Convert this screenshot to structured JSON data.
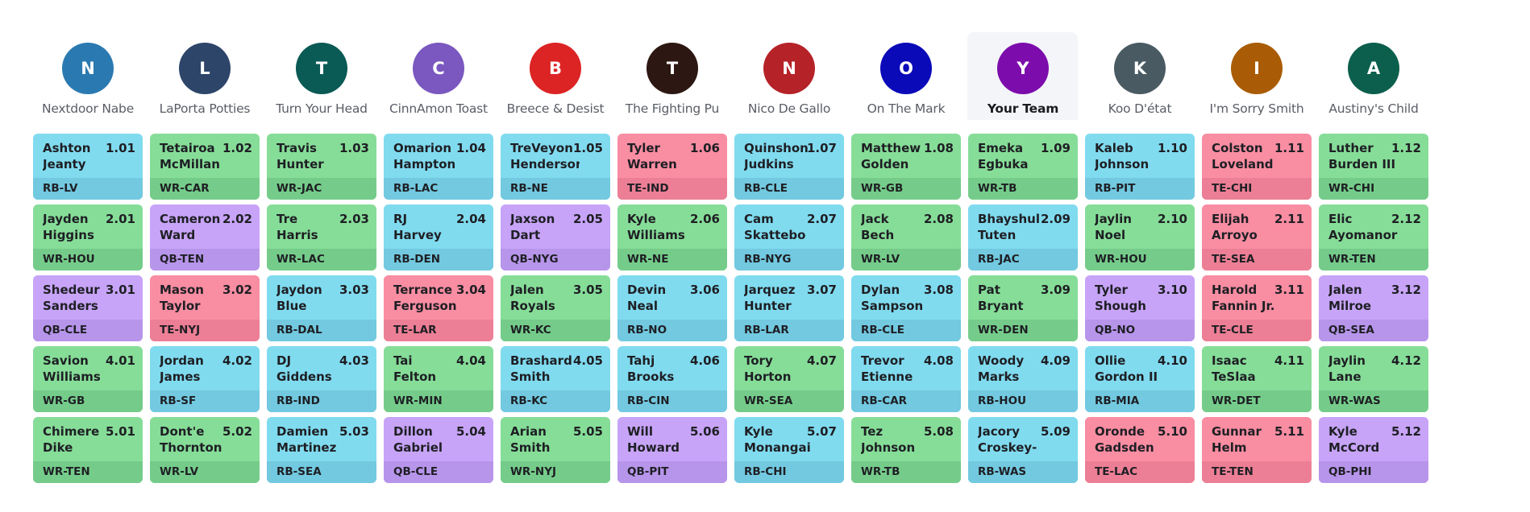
{
  "my_team": "Your Team",
  "teams": [
    {
      "initial": "N",
      "name": "Nextdoor Nabe",
      "color": "#2a7ab1"
    },
    {
      "initial": "L",
      "name": "LaPorta Potties",
      "color": "#2d4569"
    },
    {
      "initial": "T",
      "name": "Turn Your Head",
      "color": "#0a5a55"
    },
    {
      "initial": "C",
      "name": "CinnAmon Toast",
      "color": "#7a58bf"
    },
    {
      "initial": "B",
      "name": "Breece & Desist",
      "color": "#dc2424"
    },
    {
      "initial": "T",
      "name": "The Fighting Pu",
      "color": "#2c1712"
    },
    {
      "initial": "N",
      "name": "Nico De Gallo",
      "color": "#b52227"
    },
    {
      "initial": "O",
      "name": "On The Mark",
      "color": "#0a0ab8"
    },
    {
      "initial": "Y",
      "name": "Your Team",
      "color": "#7c0dac"
    },
    {
      "initial": "K",
      "name": "Koo D'état",
      "color": "#495a62"
    },
    {
      "initial": "I",
      "name": "I'm Sorry Smith",
      "color": "#a95c05"
    },
    {
      "initial": "A",
      "name": "Austiny's Child",
      "color": "#0c5f4c"
    }
  ],
  "rounds": [
    [
      {
        "name": "Ashton\nJeanty",
        "pick": "1.01",
        "pos": "RB",
        "tag": "RB-LV"
      },
      {
        "name": "Tetairoa\nMcMillan",
        "pick": "1.02",
        "pos": "WR",
        "tag": "WR-CAR"
      },
      {
        "name": "Travis\nHunter",
        "pick": "1.03",
        "pos": "WR",
        "tag": "WR-JAC"
      },
      {
        "name": "Omarion\nHampton",
        "pick": "1.04",
        "pos": "RB",
        "tag": "RB-LAC"
      },
      {
        "name": "TreVeyon\nHenderson",
        "pick": "1.05",
        "pos": "RB",
        "tag": "RB-NE"
      },
      {
        "name": "Tyler\nWarren",
        "pick": "1.06",
        "pos": "TE",
        "tag": "TE-IND"
      },
      {
        "name": "Quinshon\nJudkins",
        "pick": "1.07",
        "pos": "RB",
        "tag": "RB-CLE"
      },
      {
        "name": "Matthew\nGolden",
        "pick": "1.08",
        "pos": "WR",
        "tag": "WR-GB"
      },
      {
        "name": "Emeka\nEgbuka",
        "pick": "1.09",
        "pos": "WR",
        "tag": "WR-TB"
      },
      {
        "name": "Kaleb\nJohnson",
        "pick": "1.10",
        "pos": "RB",
        "tag": "RB-PIT"
      },
      {
        "name": "Colston\nLoveland",
        "pick": "1.11",
        "pos": "TE",
        "tag": "TE-CHI"
      },
      {
        "name": "Luther\nBurden III",
        "pick": "1.12",
        "pos": "WR",
        "tag": "WR-CHI"
      }
    ],
    [
      {
        "name": "Jayden\nHiggins",
        "pick": "2.01",
        "pos": "WR",
        "tag": "WR-HOU"
      },
      {
        "name": "Cameron\nWard",
        "pick": "2.02",
        "pos": "QB",
        "tag": "QB-TEN"
      },
      {
        "name": "Tre\nHarris",
        "pick": "2.03",
        "pos": "WR",
        "tag": "WR-LAC"
      },
      {
        "name": "RJ\nHarvey",
        "pick": "2.04",
        "pos": "RB",
        "tag": "RB-DEN"
      },
      {
        "name": "Jaxson\nDart",
        "pick": "2.05",
        "pos": "QB",
        "tag": "QB-NYG"
      },
      {
        "name": "Kyle\nWilliams",
        "pick": "2.06",
        "pos": "WR",
        "tag": "WR-NE"
      },
      {
        "name": "Cam\nSkattebo",
        "pick": "2.07",
        "pos": "RB",
        "tag": "RB-NYG"
      },
      {
        "name": "Jack\nBech",
        "pick": "2.08",
        "pos": "WR",
        "tag": "WR-LV"
      },
      {
        "name": "Bhayshul\nTuten",
        "pick": "2.09",
        "pos": "RB",
        "tag": "RB-JAC"
      },
      {
        "name": "Jaylin\nNoel",
        "pick": "2.10",
        "pos": "WR",
        "tag": "WR-HOU"
      },
      {
        "name": "Elijah\nArroyo",
        "pick": "2.11",
        "pos": "TE",
        "tag": "TE-SEA"
      },
      {
        "name": "Elic\nAyomanor",
        "pick": "2.12",
        "pos": "WR",
        "tag": "WR-TEN"
      }
    ],
    [
      {
        "name": "Shedeur\nSanders",
        "pick": "3.01",
        "pos": "QB",
        "tag": "QB-CLE"
      },
      {
        "name": "Mason\nTaylor",
        "pick": "3.02",
        "pos": "TE",
        "tag": "TE-NYJ"
      },
      {
        "name": "Jaydon\nBlue",
        "pick": "3.03",
        "pos": "RB",
        "tag": "RB-DAL"
      },
      {
        "name": "Terrance\nFerguson",
        "pick": "3.04",
        "pos": "TE",
        "tag": "TE-LAR"
      },
      {
        "name": "Jalen\nRoyals",
        "pick": "3.05",
        "pos": "WR",
        "tag": "WR-KC"
      },
      {
        "name": "Devin\nNeal",
        "pick": "3.06",
        "pos": "RB",
        "tag": "RB-NO"
      },
      {
        "name": "Jarquez\nHunter",
        "pick": "3.07",
        "pos": "RB",
        "tag": "RB-LAR"
      },
      {
        "name": "Dylan\nSampson",
        "pick": "3.08",
        "pos": "RB",
        "tag": "RB-CLE"
      },
      {
        "name": "Pat\nBryant",
        "pick": "3.09",
        "pos": "WR",
        "tag": "WR-DEN"
      },
      {
        "name": "Tyler\nShough",
        "pick": "3.10",
        "pos": "QB",
        "tag": "QB-NO"
      },
      {
        "name": "Harold\nFannin Jr.",
        "pick": "3.11",
        "pos": "TE",
        "tag": "TE-CLE"
      },
      {
        "name": "Jalen\nMilroe",
        "pick": "3.12",
        "pos": "QB",
        "tag": "QB-SEA"
      }
    ],
    [
      {
        "name": "Savion\nWilliams",
        "pick": "4.01",
        "pos": "WR",
        "tag": "WR-GB"
      },
      {
        "name": "Jordan\nJames",
        "pick": "4.02",
        "pos": "RB",
        "tag": "RB-SF"
      },
      {
        "name": "DJ\nGiddens",
        "pick": "4.03",
        "pos": "RB",
        "tag": "RB-IND"
      },
      {
        "name": "Tai\nFelton",
        "pick": "4.04",
        "pos": "WR",
        "tag": "WR-MIN"
      },
      {
        "name": "Brashard\nSmith",
        "pick": "4.05",
        "pos": "RB",
        "tag": "RB-KC"
      },
      {
        "name": "Tahj\nBrooks",
        "pick": "4.06",
        "pos": "RB",
        "tag": "RB-CIN"
      },
      {
        "name": "Tory\nHorton",
        "pick": "4.07",
        "pos": "WR",
        "tag": "WR-SEA"
      },
      {
        "name": "Trevor\nEtienne",
        "pick": "4.08",
        "pos": "RB",
        "tag": "RB-CAR"
      },
      {
        "name": "Woody\nMarks",
        "pick": "4.09",
        "pos": "RB",
        "tag": "RB-HOU"
      },
      {
        "name": "Ollie\nGordon II",
        "pick": "4.10",
        "pos": "RB",
        "tag": "RB-MIA"
      },
      {
        "name": "Isaac\nTeSlaa",
        "pick": "4.11",
        "pos": "WR",
        "tag": "WR-DET"
      },
      {
        "name": "Jaylin\nLane",
        "pick": "4.12",
        "pos": "WR",
        "tag": "WR-WAS"
      }
    ],
    [
      {
        "name": "Chimere\nDike",
        "pick": "5.01",
        "pos": "WR",
        "tag": "WR-TEN"
      },
      {
        "name": "Dont'e\nThornton J",
        "pick": "5.02",
        "pos": "WR",
        "tag": "WR-LV"
      },
      {
        "name": "Damien\nMartinez",
        "pick": "5.03",
        "pos": "RB",
        "tag": "RB-SEA"
      },
      {
        "name": "Dillon\nGabriel",
        "pick": "5.04",
        "pos": "QB",
        "tag": "QB-CLE"
      },
      {
        "name": "Arian\nSmith",
        "pick": "5.05",
        "pos": "WR",
        "tag": "WR-NYJ"
      },
      {
        "name": "Will\nHoward",
        "pick": "5.06",
        "pos": "QB",
        "tag": "QB-PIT"
      },
      {
        "name": "Kyle\nMonangai",
        "pick": "5.07",
        "pos": "RB",
        "tag": "RB-CHI"
      },
      {
        "name": "Tez\nJohnson",
        "pick": "5.08",
        "pos": "WR",
        "tag": "WR-TB"
      },
      {
        "name": "Jacory\nCroskey-M",
        "pick": "5.09",
        "pos": "RB",
        "tag": "RB-WAS"
      },
      {
        "name": "Oronde\nGadsden II",
        "pick": "5.10",
        "pos": "TE",
        "tag": "TE-LAC"
      },
      {
        "name": "Gunnar\nHelm",
        "pick": "5.11",
        "pos": "TE",
        "tag": "TE-TEN"
      },
      {
        "name": "Kyle\nMcCord",
        "pick": "5.12",
        "pos": "QB",
        "tag": "QB-PHI"
      }
    ]
  ]
}
